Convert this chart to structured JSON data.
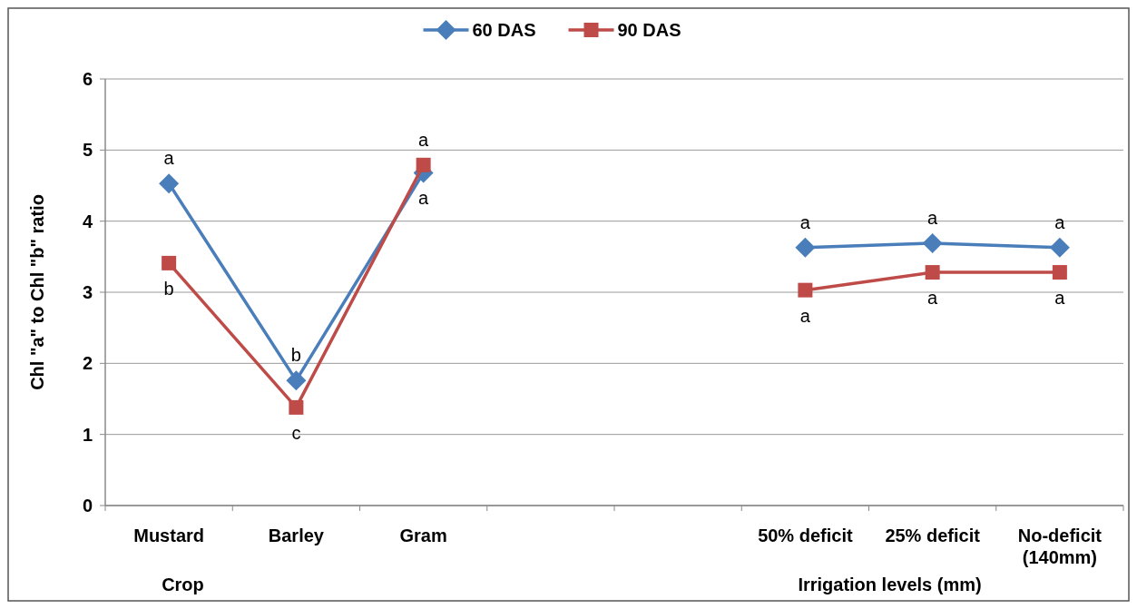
{
  "chart_data": {
    "type": "line",
    "ylabel": "Chl \"a\" to Chl \"b\" ratio",
    "categories": [
      "Mustard",
      "Barley",
      "Gram",
      null,
      null,
      "50% deficit",
      "25% deficit",
      "No-deficit (140mm)"
    ],
    "series": [
      {
        "name": "60 DAS",
        "color": "#4a7ebb",
        "marker": "diamond",
        "values": [
          4.53,
          1.76,
          4.68,
          null,
          null,
          3.63,
          3.69,
          3.63
        ]
      },
      {
        "name": "90 DAS",
        "color": "#be4b48",
        "marker": "square",
        "values": [
          3.41,
          1.38,
          4.79,
          null,
          null,
          3.03,
          3.28,
          3.28
        ]
      }
    ],
    "ylim": [
      0,
      6
    ],
    "yticks": [
      0,
      1,
      2,
      3,
      4,
      5,
      6
    ],
    "grid": "y",
    "legend": "top",
    "annotations": [
      {
        "text": "a",
        "x": "Mustard",
        "y": 4.53
      },
      {
        "text": "b",
        "x": "Mustard",
        "y": 3.41
      },
      {
        "text": "b",
        "x": "Barley",
        "y": 1.76
      },
      {
        "text": "c",
        "x": "Barley",
        "y": 1.38
      },
      {
        "text": "a",
        "x": "Gram",
        "y": 4.79
      },
      {
        "text": "a",
        "x": "Gram",
        "y": 4.68
      },
      {
        "text": "a",
        "x": "50% deficit",
        "y": 3.63
      },
      {
        "text": "a",
        "x": "50% deficit",
        "y": 3.03
      },
      {
        "text": "a",
        "x": "25% deficit",
        "y": 3.69
      },
      {
        "text": "a",
        "x": "25% deficit",
        "y": 3.28
      },
      {
        "text": "a",
        "x": "No-deficit (140mm)",
        "y": 3.63
      },
      {
        "text": "a",
        "x": "No-deficit (140mm)",
        "y": 3.28
      },
      "Crop",
      "Irrigation levels  (mm)"
    ]
  }
}
